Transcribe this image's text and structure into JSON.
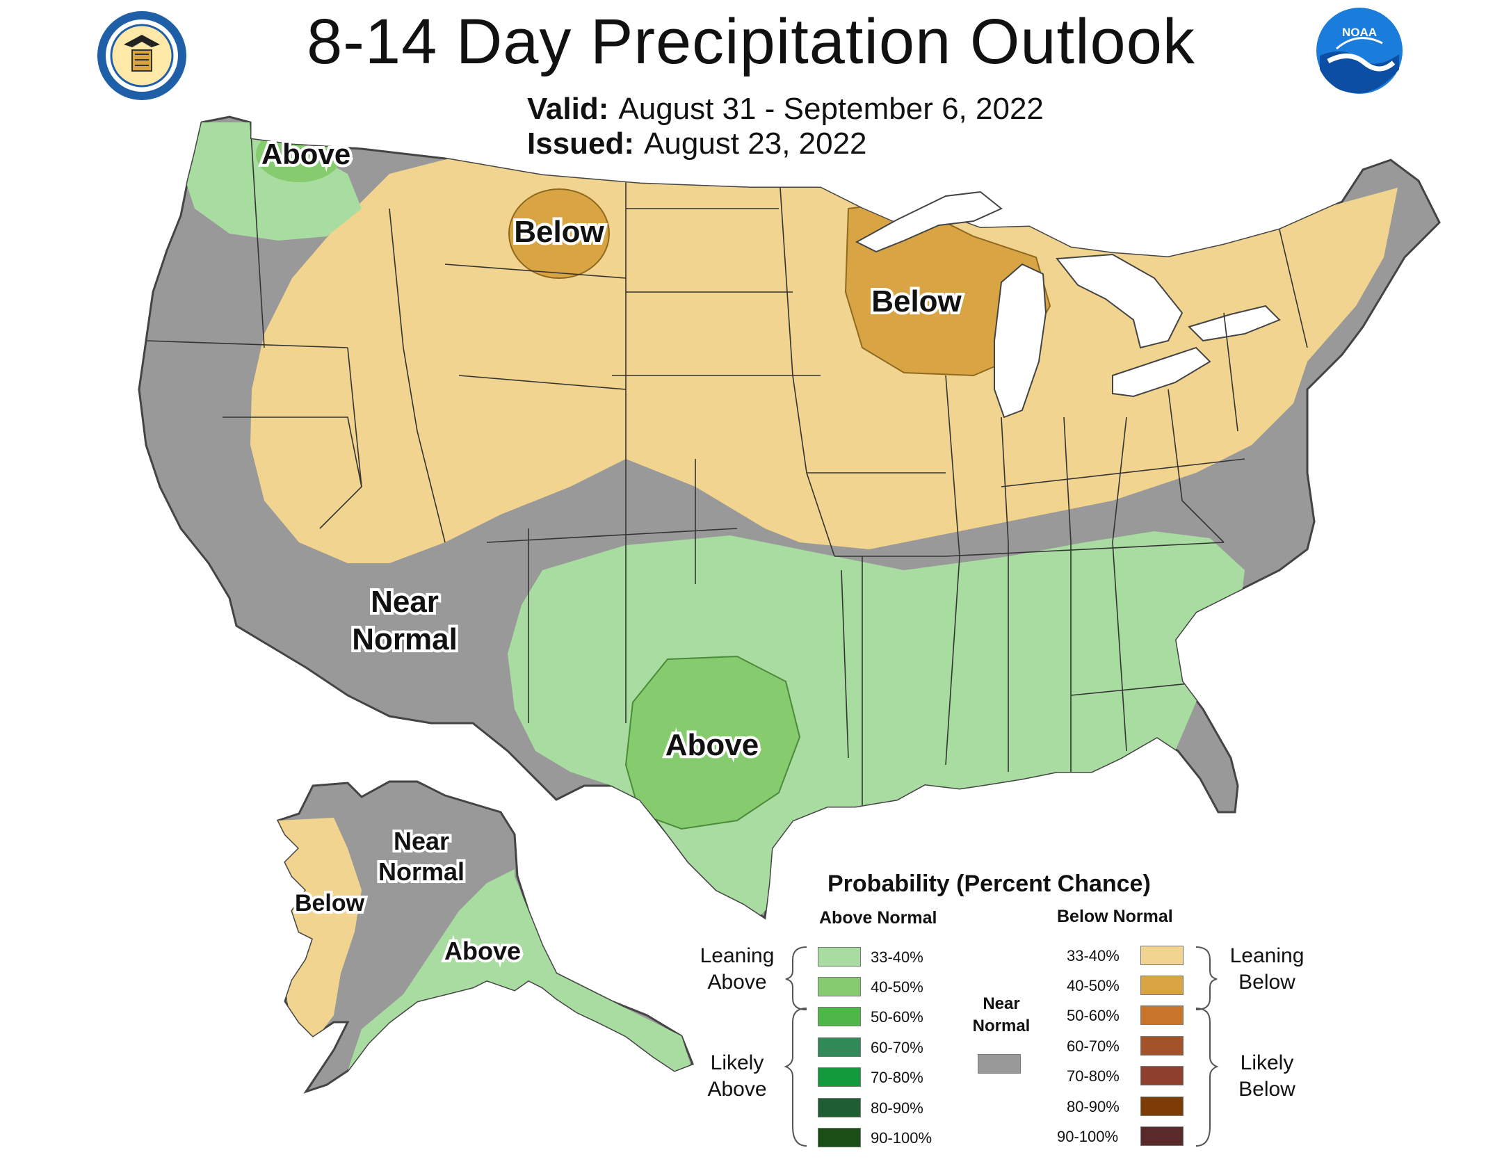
{
  "header": {
    "title": "8-14 Day Precipitation Outlook",
    "valid_label": "Valid:",
    "valid_value": "August 31 - September 6, 2022",
    "issued_label": "Issued:",
    "issued_value": "August 23, 2022"
  },
  "logos": {
    "left": "department-of-commerce-seal",
    "right": "noaa-logo",
    "right_text": "NOAA"
  },
  "colors": {
    "above_33_40": "#a8dca0",
    "above_40_50": "#86cc6e",
    "above_50_60": "#4db848",
    "above_60_70": "#2f8a58",
    "above_70_80": "#139a3c",
    "above_80_90": "#1f5e32",
    "above_90_100": "#1b4d17",
    "below_33_40": "#f0d48f",
    "below_40_50": "#d9a444",
    "below_50_60": "#c8742a",
    "below_60_70": "#a4522a",
    "below_70_80": "#8e3f2e",
    "below_80_90": "#7d3c05",
    "below_90_100": "#5a2a2a",
    "near_normal": "#999999",
    "great_lakes": "#ffffff",
    "state_lines": "#333333"
  },
  "map_labels": {
    "nw_above": "Above",
    "mt_below": "Below",
    "wi_below": "Below",
    "sw_near_normal_1": "Near",
    "sw_near_normal_2": "Normal",
    "tx_above": "Above",
    "ak_near_normal_1": "Near",
    "ak_near_normal_2": "Normal",
    "ak_below": "Below",
    "ak_above": "Above"
  },
  "legend": {
    "title": "Probability (Percent Chance)",
    "above_header": "Above Normal",
    "below_header": "Below Normal",
    "near_normal_1": "Near",
    "near_normal_2": "Normal",
    "leaning_above_1": "Leaning",
    "leaning_above_2": "Above",
    "likely_above_1": "Likely",
    "likely_above_2": "Above",
    "leaning_below_1": "Leaning",
    "leaning_below_2": "Below",
    "likely_below_1": "Likely",
    "likely_below_2": "Below",
    "above_pcts": [
      "33-40%",
      "40-50%",
      "50-60%",
      "60-70%",
      "70-80%",
      "80-90%",
      "90-100%"
    ],
    "below_pcts": [
      "33-40%",
      "40-50%",
      "50-60%",
      "60-70%",
      "70-80%",
      "80-90%",
      "90-100%"
    ]
  }
}
